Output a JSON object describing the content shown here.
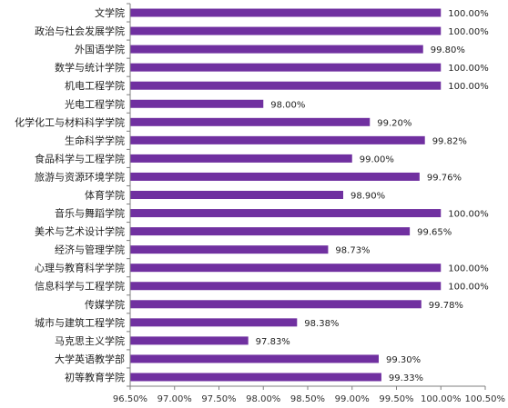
{
  "chart_data": {
    "type": "bar",
    "orientation": "horizontal",
    "categories": [
      "文学院",
      "政治与社会发展学院",
      "外国语学院",
      "数学与统计学院",
      "机电工程学院",
      "光电工程学院",
      "化学化工与材料科学学院",
      "生命科学学院",
      "食品科学与工程学院",
      "旅游与资源环境学院",
      "体育学院",
      "音乐与舞蹈学院",
      "美术与艺术设计学院",
      "经济与管理学院",
      "心理与教育科学学院",
      "信息科学与工程学院",
      "传媒学院",
      "城市与建筑工程学院",
      "马克思主义学院",
      "大学英语教学部",
      "初等教育学院"
    ],
    "values": [
      100.0,
      100.0,
      99.8,
      100.0,
      100.0,
      98.0,
      99.2,
      99.82,
      99.0,
      99.76,
      98.9,
      100.0,
      99.65,
      98.73,
      100.0,
      100.0,
      99.78,
      98.38,
      97.83,
      99.3,
      99.33
    ],
    "value_labels": [
      "100.00%",
      "100.00%",
      "99.80%",
      "100.00%",
      "100.00%",
      "98.00%",
      "99.20%",
      "99.82%",
      "99.00%",
      "99.76%",
      "98.90%",
      "100.00%",
      "99.65%",
      "98.73%",
      "100.00%",
      "100.00%",
      "99.78%",
      "98.38%",
      "97.83%",
      "99.30%",
      "99.33%"
    ],
    "xlim": [
      96.5,
      100.5
    ],
    "xticks": [
      96.5,
      97.0,
      97.5,
      98.0,
      98.5,
      99.0,
      99.5,
      100.0,
      100.5
    ],
    "xtick_labels": [
      "96.50%",
      "97.00%",
      "97.50%",
      "98.00%",
      "98.50%",
      "99.00%",
      "99.50%",
      "100.00%",
      "100.50%"
    ],
    "grid": false,
    "legend": "none",
    "bar_color": "#7030a0",
    "axis_color": "#7f7f7f"
  }
}
